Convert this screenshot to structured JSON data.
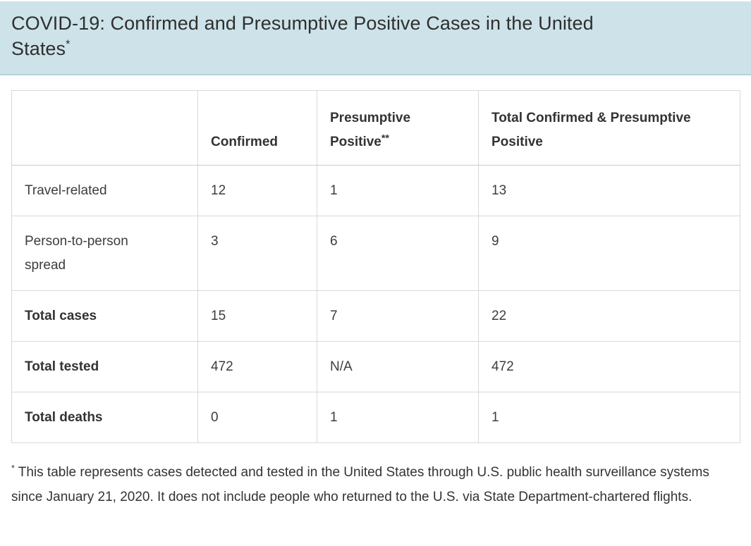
{
  "header": {
    "title_line1": "COVID-19: Confirmed and Presumptive Positive Cases in the United",
    "title_line2": "States",
    "title_sup": "*",
    "background_color": "#cde3e9"
  },
  "table": {
    "columns": [
      {
        "label": ""
      },
      {
        "label": "Confirmed"
      },
      {
        "label": "Presumptive Positive",
        "sup": "**"
      },
      {
        "label": "Total Confirmed & Presumptive Positive"
      }
    ],
    "rows": [
      {
        "label": "Travel-related",
        "confirmed": "12",
        "presumptive_positive": "1",
        "total": "13"
      },
      {
        "label": "Person-to-person spread",
        "confirmed": "3",
        "presumptive_positive": "6",
        "total": "9"
      },
      {
        "label": "Total cases",
        "confirmed": "15",
        "presumptive_positive": "7",
        "total": "22"
      },
      {
        "label": "Total tested",
        "confirmed": "472",
        "presumptive_positive": "N/A",
        "total": "472"
      },
      {
        "label": "Total deaths",
        "confirmed": "0",
        "presumptive_positive": "1",
        "total": "1"
      }
    ]
  },
  "footnote": {
    "sup": "*",
    "text": "This table represents cases detected and tested in the United States through U.S. public health surveillance systems since January 21, 2020. It does not include people who returned to the U.S. via State Department-chartered flights."
  },
  "colors": {
    "band_background": "#cde3e9",
    "band_border": "#b6d2d9",
    "text": "#333333",
    "table_border": "#d9d9d9"
  }
}
